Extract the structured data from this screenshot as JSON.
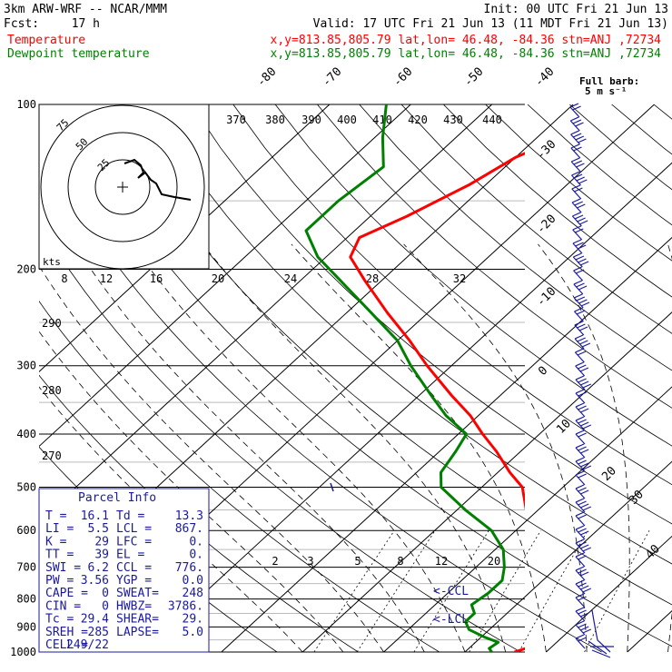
{
  "header": {
    "model": "3km ARW-WRF -- NCAR/MMM",
    "init": "Init: 00 UTC Fri 21 Jun 13",
    "fcst_label": "Fcst:",
    "fcst_value": "17 h",
    "valid": "Valid: 17 UTC Fri 21 Jun 13 (11 MDT Fri 21 Jun 13)"
  },
  "legend": [
    {
      "label": "Temperature",
      "info": "x,y=813.85,805.79   lat,lon= 46.48, -84.36   stn=ANJ ,72734",
      "color": "#ff0000"
    },
    {
      "label": "Dewpoint temperature",
      "info": "x,y=813.85,805.79   lat,lon= 46.48, -84.36   stn=ANJ ,72734",
      "color": "#008000"
    }
  ],
  "barb_legend": {
    "line1": "Full barb:",
    "line2": "5 m s⁻¹"
  },
  "hodograph": {
    "units": "kts",
    "ring_labels": [
      "25",
      "50",
      "75"
    ]
  },
  "parcel_info": {
    "title": "Parcel Info",
    "rows": [
      {
        "a": "T  =",
        "av": "16.1",
        "b": "Td =",
        "bv": "13.3"
      },
      {
        "a": "LI =",
        "av": "5.5",
        "b": "LCL =",
        "bv": "867."
      },
      {
        "a": "K  =",
        "av": "29",
        "b": "LFC =",
        "bv": "0."
      },
      {
        "a": "TT =",
        "av": "39",
        "b": "EL  =",
        "bv": "0."
      },
      {
        "a": "SWI =",
        "av": "6.2",
        "b": "CCL =",
        "bv": "776."
      },
      {
        "a": "PW =",
        "av": "3.56",
        "b": "YGP =",
        "bv": "0.0"
      },
      {
        "a": "CAPE =",
        "av": "0",
        "b": "SWEAT=",
        "bv": "248"
      },
      {
        "a": "CIN =",
        "av": "0",
        "b": "HWBZ=",
        "bv": "3786."
      },
      {
        "a": "Tc =",
        "av": "29.4",
        "b": "SHEAR=",
        "bv": "29."
      },
      {
        "a": "SREH =",
        "av": "285",
        "b": "LAPSE=",
        "bv": "5.0"
      },
      {
        "a": "CELL =",
        "av": "249/22",
        "b": "",
        "bv": ""
      }
    ]
  },
  "level_markers": {
    "ccl": "<-CCL",
    "lcl": "<-LCL"
  },
  "chart_data": {
    "type": "line",
    "title": "",
    "xlabel": "",
    "ylabel": "",
    "y_scale": "log-pressure",
    "pressure_levels": [
      "100",
      "200",
      "300",
      "400",
      "500",
      "600",
      "700",
      "800",
      "900",
      "1000"
    ],
    "isotherm_labels": [
      "-80",
      "-70",
      "-60",
      "-50",
      "-40",
      "-30",
      "-20",
      "-10",
      "0",
      "10",
      "20",
      "30",
      "40"
    ],
    "theta_labels": [
      "370",
      "380",
      "390",
      "400",
      "410",
      "420",
      "430",
      "440"
    ],
    "theta_left_labels": [
      "290",
      "280",
      "270"
    ],
    "mixing_ratio_top_labels": [
      "8",
      "12",
      "16",
      "20",
      "24",
      "28",
      "32"
    ],
    "mixing_ratio_low_labels": [
      "2",
      "3",
      "5",
      "8",
      "12",
      "20"
    ],
    "series": [
      {
        "name": "Temperature",
        "color": "#ff0000",
        "points": [
          [
            1000,
            16.1
          ],
          [
            985,
            17.0
          ],
          [
            960,
            21.0
          ],
          [
            930,
            20.6
          ],
          [
            900,
            19.0
          ],
          [
            860,
            17.0
          ],
          [
            820,
            15.0
          ],
          [
            780,
            12.8
          ],
          [
            740,
            10.5
          ],
          [
            700,
            8.4
          ],
          [
            650,
            5.8
          ],
          [
            600,
            2.6
          ],
          [
            550,
            -1.5
          ],
          [
            500,
            -5.0
          ],
          [
            470,
            -8.5
          ],
          [
            430,
            -13.0
          ],
          [
            400,
            -17.0
          ],
          [
            370,
            -21.0
          ],
          [
            340,
            -26.0
          ],
          [
            300,
            -33.0
          ],
          [
            270,
            -38.5
          ],
          [
            240,
            -45.0
          ],
          [
            210,
            -52.0
          ],
          [
            190,
            -57.0
          ],
          [
            175,
            -58.5
          ],
          [
            160,
            -55.5
          ],
          [
            140,
            -52.0
          ],
          [
            125,
            -50.0
          ],
          [
            115,
            -47.0
          ],
          [
            108,
            -45.5
          ],
          [
            100,
            -44.5
          ]
        ]
      },
      {
        "name": "Dewpoint temperature",
        "color": "#008000",
        "points": [
          [
            1000,
            13.3
          ],
          [
            985,
            12.5
          ],
          [
            960,
            12.8
          ],
          [
            940,
            10.5
          ],
          [
            910,
            7.5
          ],
          [
            880,
            6.0
          ],
          [
            850,
            6.0
          ],
          [
            820,
            4.5
          ],
          [
            780,
            5.0
          ],
          [
            740,
            5.0
          ],
          [
            700,
            3.5
          ],
          [
            650,
            1.0
          ],
          [
            600,
            -3.0
          ],
          [
            550,
            -9.0
          ],
          [
            500,
            -15.0
          ],
          [
            470,
            -17.0
          ],
          [
            430,
            -18.0
          ],
          [
            400,
            -19.0
          ],
          [
            370,
            -24.0
          ],
          [
            340,
            -28.5
          ],
          [
            300,
            -35.0
          ],
          [
            270,
            -40.0
          ],
          [
            240,
            -47.0
          ],
          [
            210,
            -55.0
          ],
          [
            190,
            -61.0
          ],
          [
            170,
            -66.0
          ],
          [
            150,
            -66.0
          ],
          [
            130,
            -65.0
          ],
          [
            115,
            -69.0
          ],
          [
            100,
            -73.0
          ]
        ]
      }
    ],
    "wind_barbs_note": "Wind profile drawn as barbs along the right edge"
  }
}
